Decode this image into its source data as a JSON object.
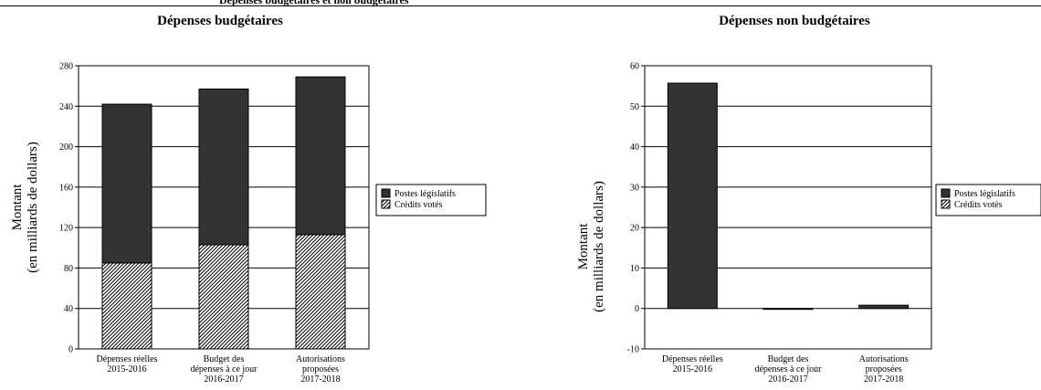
{
  "header": {
    "truncated_text": "Dépenses budgétaires et non budgétaires"
  },
  "chart_data": [
    {
      "type": "bar",
      "stacked": true,
      "title": "Dépenses budgétaires",
      "ylabel": "Montant (en milliards de dollars)",
      "ylabel_lines": [
        "Montant",
        "(en milliards de dollars)"
      ],
      "ylim": [
        0,
        280
      ],
      "yticks": [
        0,
        40,
        80,
        120,
        160,
        200,
        240,
        280
      ],
      "grid": true,
      "categories": [
        [
          "Dépenses réelles",
          "2015-2016"
        ],
        [
          "Budget des",
          "dépenses à ce jour",
          "2016-2017"
        ],
        [
          "Autorisations",
          "proposées",
          "2017-2018"
        ]
      ],
      "series": [
        {
          "name": "Crédits votés",
          "values": [
            85,
            103,
            113
          ],
          "color": "#ffffff",
          "pattern": "diagonal-hatch"
        },
        {
          "name": "Postes législatifs",
          "values": [
            157,
            154,
            156
          ],
          "color": "#333333",
          "pattern": "solid"
        }
      ],
      "legend": {
        "position": "right",
        "items": [
          "Postes législatifs",
          "Crédits votés"
        ]
      }
    },
    {
      "type": "bar",
      "stacked": true,
      "title": "Dépenses non budgétaires",
      "ylabel": "Montant (en milliards de dollars)",
      "ylabel_lines": [
        "Montant",
        "(en milliards de dollars)"
      ],
      "ylim": [
        -10,
        60
      ],
      "yticks": [
        -10,
        0,
        10,
        20,
        30,
        40,
        50,
        60
      ],
      "grid": true,
      "categories": [
        [
          "Dépenses réelles",
          "2015-2016"
        ],
        [
          "Budget des",
          "dépenses à ce jour",
          "2016-2017"
        ],
        [
          "Autorisations",
          "proposées",
          "2017-2018"
        ]
      ],
      "series": [
        {
          "name": "Crédits votés",
          "values": [
            0,
            0,
            0
          ],
          "color": "#ffffff",
          "pattern": "diagonal-hatch"
        },
        {
          "name": "Postes législatifs",
          "values": [
            55.7,
            -0.2,
            0.8
          ],
          "color": "#333333",
          "pattern": "solid"
        }
      ],
      "legend": {
        "position": "right",
        "items": [
          "Postes législatifs",
          "Crédits votés"
        ]
      }
    }
  ]
}
